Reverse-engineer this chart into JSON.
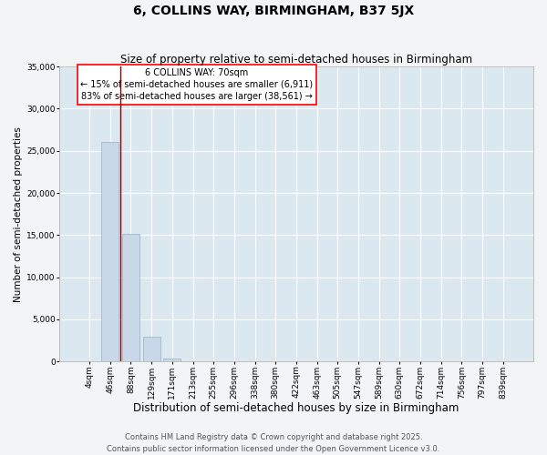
{
  "title": "6, COLLINS WAY, BIRMINGHAM, B37 5JX",
  "subtitle": "Size of property relative to semi-detached houses in Birmingham",
  "xlabel": "Distribution of semi-detached houses by size in Birmingham",
  "ylabel": "Number of semi-detached properties",
  "categories": [
    "4sqm",
    "46sqm",
    "88sqm",
    "129sqm",
    "171sqm",
    "213sqm",
    "255sqm",
    "296sqm",
    "338sqm",
    "380sqm",
    "422sqm",
    "463sqm",
    "505sqm",
    "547sqm",
    "589sqm",
    "630sqm",
    "672sqm",
    "714sqm",
    "756sqm",
    "797sqm",
    "839sqm"
  ],
  "values": [
    30,
    26100,
    15100,
    3000,
    400,
    0,
    0,
    0,
    0,
    0,
    0,
    0,
    0,
    0,
    0,
    0,
    0,
    0,
    0,
    0,
    0
  ],
  "bar_color": "#c8d8e8",
  "bar_edge_color": "#9ab0c8",
  "ylim": [
    0,
    35000
  ],
  "yticks": [
    0,
    5000,
    10000,
    15000,
    20000,
    25000,
    30000,
    35000
  ],
  "annotation_line1": "6 COLLINS WAY: 70sqm",
  "annotation_line2": "← 15% of semi-detached houses are smaller (6,911)",
  "annotation_line3": "83% of semi-detached houses are larger (38,561) →",
  "red_line_x": 1.5,
  "footer1": "Contains HM Land Registry data © Crown copyright and database right 2025.",
  "footer2": "Contains public sector information licensed under the Open Government Licence v3.0.",
  "bg_color": "#f2f4f6",
  "plot_bg_color": "#dce8f0",
  "grid_color": "#ffffff",
  "title_fontsize": 10,
  "subtitle_fontsize": 8.5,
  "xlabel_fontsize": 8.5,
  "ylabel_fontsize": 7.5,
  "tick_fontsize": 6.5,
  "footer_fontsize": 6,
  "ann_fontsize": 7
}
